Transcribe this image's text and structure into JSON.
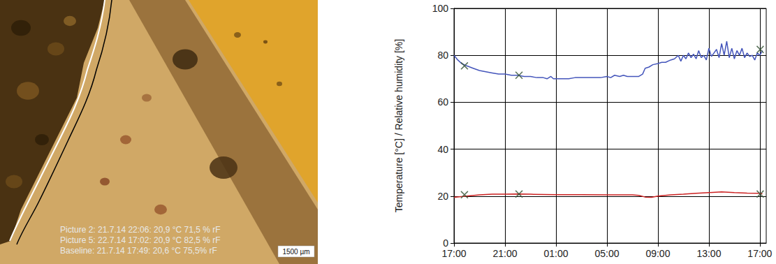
{
  "photo": {
    "captions": [
      "Picture 2: 21.7.14 22:06: 20,9 °C 71,5 % rF",
      "Picture 5: 22.7.14 17:02: 20,9 °C 82,5 % rF",
      "Baseline: 21.7.14 17:49: 20,6 °C 75,5% rF"
    ],
    "scale_bar": "1500 µm"
  },
  "chart_data": {
    "type": "line",
    "y_label": "Temperature [°C] / Relative humidity [%]",
    "xlim": [
      17,
      41.5
    ],
    "xticks": [
      {
        "value": 17,
        "label": "17:00"
      },
      {
        "value": 21,
        "label": "21:00"
      },
      {
        "value": 25,
        "label": "01:00"
      },
      {
        "value": 29,
        "label": "05:00"
      },
      {
        "value": 33,
        "label": "09:00"
      },
      {
        "value": 37,
        "label": "13:00"
      },
      {
        "value": 41,
        "label": "17:00"
      }
    ],
    "ylim": [
      0,
      100
    ],
    "yticks": [
      0,
      20,
      40,
      60,
      80,
      100
    ],
    "grid": true,
    "series": [
      {
        "type": "line",
        "color": "#4455bb",
        "x": [
          17.0,
          17.3,
          17.6,
          18.0,
          18.5,
          19.0,
          19.5,
          20.0,
          20.5,
          21.0,
          21.5,
          22.0,
          22.5,
          23.0,
          23.5,
          24.0,
          24.3,
          24.6,
          24.8,
          25.0,
          25.5,
          26.0,
          26.5,
          27.0,
          28.0,
          28.5,
          29.0,
          29.3,
          29.6,
          30.0,
          30.3,
          30.6,
          31.0,
          31.5,
          31.8,
          32.0,
          32.3,
          32.6,
          33.0,
          33.3,
          33.6,
          34.0,
          34.3,
          34.6,
          34.8,
          35.0,
          35.2,
          35.4,
          35.6,
          35.8,
          36.0,
          36.2,
          36.4,
          36.6,
          36.8,
          37.0,
          37.2,
          37.4,
          37.6,
          37.8,
          38.0,
          38.2,
          38.4,
          38.6,
          38.8,
          39.0,
          39.2,
          39.4,
          39.6,
          39.8,
          40.0,
          40.2,
          40.4,
          40.6,
          40.8,
          41.0,
          41.2
        ],
        "values": [
          80,
          78,
          76.5,
          75.5,
          74.5,
          73.5,
          73,
          72.5,
          72,
          72,
          71.5,
          71.5,
          71,
          71,
          70.5,
          70.5,
          70,
          71,
          70,
          70,
          70,
          70,
          70.5,
          70.5,
          70.5,
          70.5,
          71,
          70.5,
          71.5,
          71,
          71.5,
          71,
          71,
          71,
          72,
          74.5,
          75,
          76,
          76.5,
          77,
          77,
          78,
          78.5,
          80,
          77.5,
          80,
          78.5,
          81,
          79,
          80.5,
          78.5,
          82,
          79,
          80,
          78,
          83,
          79.5,
          81,
          82.5,
          79,
          85,
          80,
          86,
          79,
          83,
          78.5,
          82,
          80,
          83,
          79,
          81,
          79.5,
          80,
          78,
          81,
          80,
          82
        ]
      },
      {
        "type": "line",
        "color": "#cc2222",
        "x": [
          17.0,
          18.0,
          19.0,
          20.0,
          21.0,
          22.0,
          23.0,
          25.0,
          27.0,
          29.0,
          30.0,
          31.0,
          31.5,
          32.0,
          32.5,
          33.0,
          34.0,
          35.0,
          36.0,
          37.0,
          38.0,
          39.0,
          40.0,
          41.0,
          41.2
        ],
        "values": [
          19.5,
          20,
          20.5,
          20.8,
          20.8,
          20.9,
          20.8,
          20.6,
          20.6,
          20.5,
          20.5,
          20.5,
          20.3,
          19.6,
          19.5,
          20,
          20.5,
          20.8,
          21.2,
          21.5,
          21.8,
          21.5,
          21.3,
          21.2,
          21
        ]
      },
      {
        "type": "scatter",
        "marker": "x",
        "color": "#2f4f2f",
        "x": [
          17.82,
          22.1,
          41.03
        ],
        "values": [
          75.5,
          71.5,
          82.5
        ]
      },
      {
        "type": "scatter",
        "marker": "x",
        "color": "#2f4f2f",
        "x": [
          17.82,
          22.1,
          41.03
        ],
        "values": [
          20.6,
          20.9,
          20.9
        ]
      }
    ]
  }
}
